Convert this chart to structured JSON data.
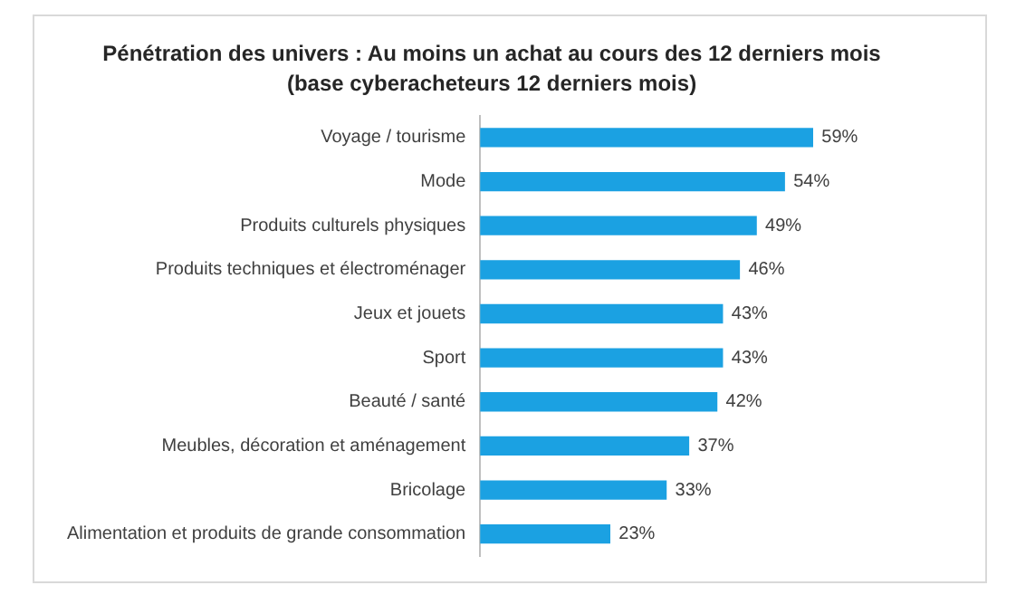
{
  "chart_data": {
    "type": "bar",
    "orientation": "horizontal",
    "title": "Pénétration des univers : Au moins un achat au cours des 12 derniers mois",
    "subtitle": "(base cyberacheteurs 12 derniers mois)",
    "categories": [
      "Voyage / tourisme",
      "Mode",
      "Produits culturels physiques",
      "Produits techniques et électroménager",
      "Jeux et jouets",
      "Sport",
      "Beauté / santé",
      "Meubles, décoration et aménagement",
      "Bricolage",
      "Alimentation et produits de grande consommation"
    ],
    "values": [
      59,
      54,
      49,
      46,
      43,
      43,
      42,
      37,
      33,
      23
    ],
    "value_labels": [
      "59%",
      "54%",
      "49%",
      "46%",
      "43%",
      "43%",
      "42%",
      "37%",
      "33%",
      "23%"
    ],
    "color": "#1ba1e2",
    "grid": false,
    "legend": false,
    "tick_labels": "y"
  }
}
